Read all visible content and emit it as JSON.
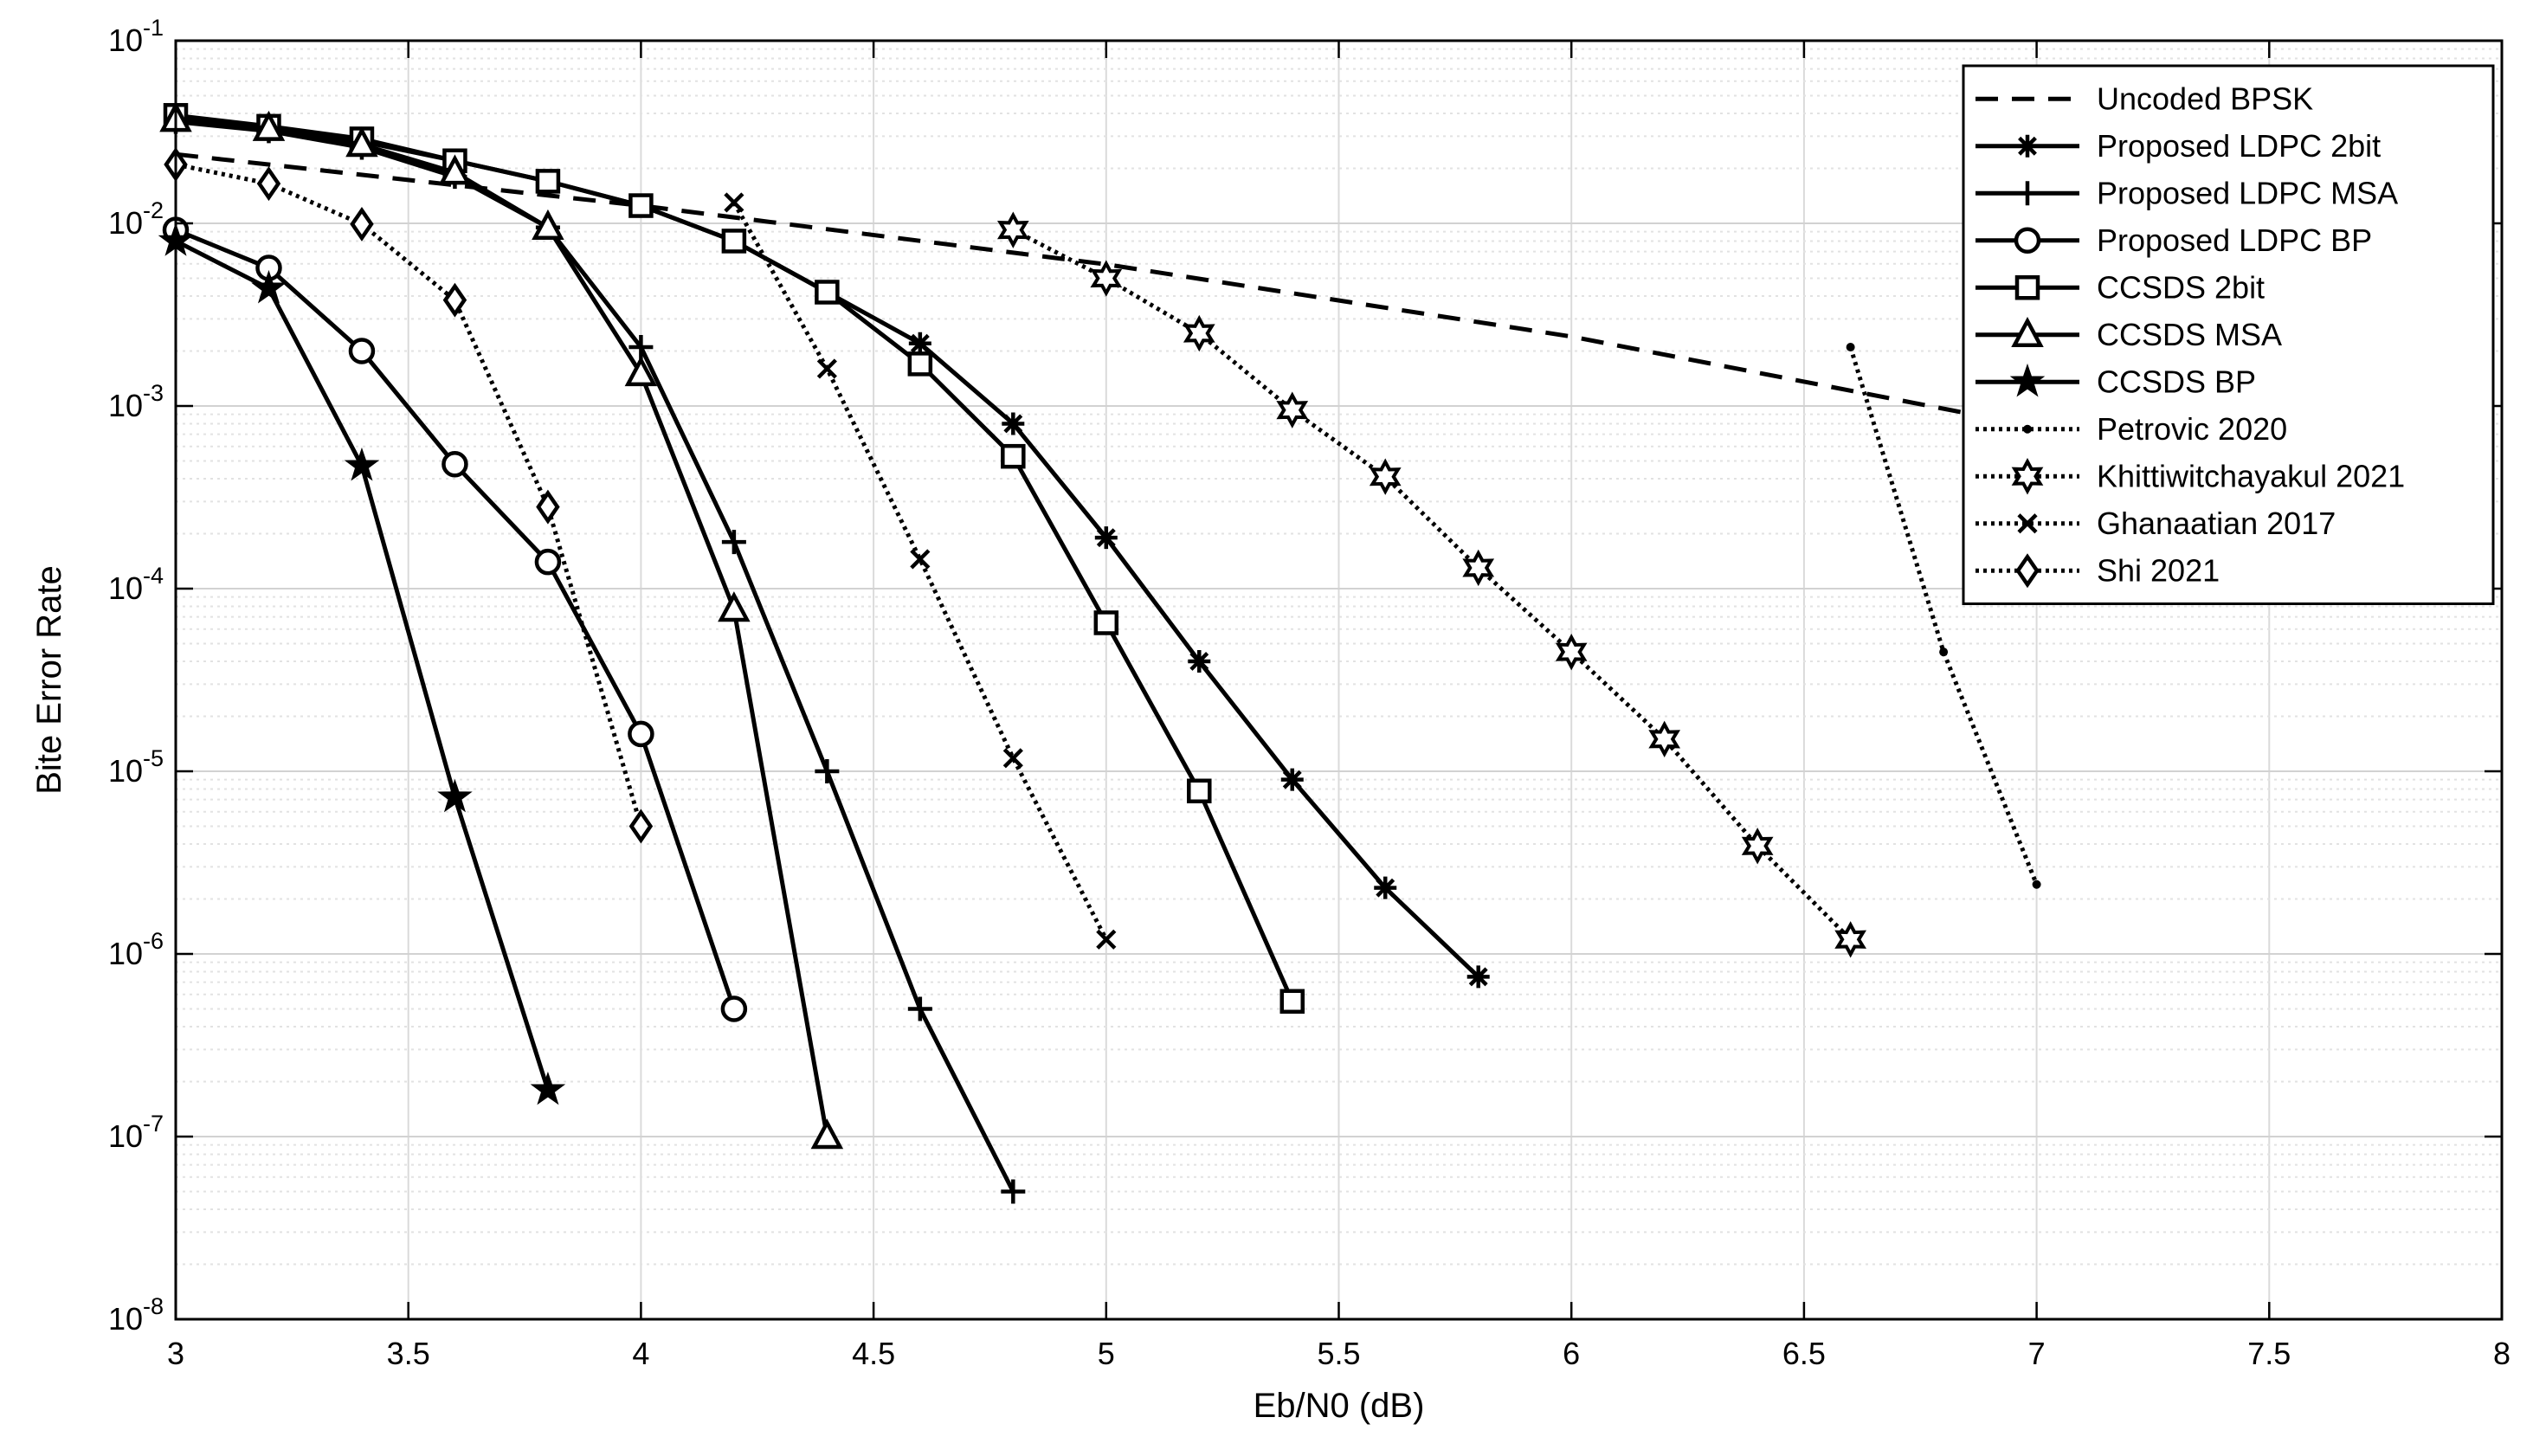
{
  "chart_data": {
    "type": "line",
    "title": "",
    "xlabel": "Eb/N0 (dB)",
    "ylabel": "Bite Error Rate",
    "xlim": [
      3,
      8
    ],
    "ylim": [
      1e-08,
      0.1
    ],
    "yscale": "log",
    "grid": true,
    "minor_grid": true,
    "legend_position": "top-right",
    "x_ticks": [
      "3",
      "3.5",
      "4",
      "4.5",
      "5",
      "5.5",
      "6",
      "6.5",
      "7",
      "7.5",
      "8"
    ],
    "y_ticks": [
      {
        "base": "10",
        "exp": "-8"
      },
      {
        "base": "10",
        "exp": "-7"
      },
      {
        "base": "10",
        "exp": "-6"
      },
      {
        "base": "10",
        "exp": "-5"
      },
      {
        "base": "10",
        "exp": "-4"
      },
      {
        "base": "10",
        "exp": "-3"
      },
      {
        "base": "10",
        "exp": "-2"
      },
      {
        "base": "10",
        "exp": "-1"
      }
    ],
    "series": [
      {
        "name": "Uncoded BPSK",
        "line": "dashed",
        "marker": "none",
        "x": [
          3,
          4,
          5,
          6,
          7,
          8
        ],
        "y": [
          0.0239,
          0.0125,
          0.00596,
          0.0024,
          0.00077,
          0.00019
        ]
      },
      {
        "name": "Proposed LDPC 2bit",
        "line": "solid",
        "marker": "asterisk",
        "x": [
          3,
          3.2,
          3.4,
          3.6,
          3.8,
          4,
          4.2,
          4.4,
          4.6,
          4.8,
          5,
          5.2,
          5.4,
          5.6,
          5.8
        ],
        "y": [
          0.038,
          0.034,
          0.028,
          0.022,
          0.017,
          0.0125,
          0.008,
          0.0042,
          0.0022,
          0.0008,
          0.00019,
          4e-05,
          9e-06,
          2.3e-06,
          7.5e-07
        ]
      },
      {
        "name": "Proposed LDPC MSA",
        "line": "solid",
        "marker": "plus",
        "x": [
          3,
          3.2,
          3.4,
          3.6,
          3.8,
          4,
          4.2,
          4.4,
          4.6,
          4.8
        ],
        "y": [
          0.036,
          0.032,
          0.026,
          0.018,
          0.0095,
          0.0021,
          0.00018,
          1e-05,
          5e-07,
          5e-08
        ]
      },
      {
        "name": "Proposed LDPC BP",
        "line": "solid",
        "marker": "circle",
        "x": [
          3,
          3.2,
          3.4,
          3.6,
          3.8,
          4,
          4.2
        ],
        "y": [
          0.0092,
          0.0057,
          0.002,
          0.00048,
          0.00014,
          1.6e-05,
          5e-07
        ]
      },
      {
        "name": "CCSDS 2bit",
        "line": "solid",
        "marker": "square",
        "x": [
          3,
          3.2,
          3.4,
          3.6,
          3.8,
          4,
          4.2,
          4.4,
          4.6,
          4.8,
          5,
          5.2,
          5.4
        ],
        "y": [
          0.039,
          0.034,
          0.029,
          0.022,
          0.017,
          0.0125,
          0.008,
          0.0042,
          0.0017,
          0.00053,
          6.5e-05,
          7.8e-06,
          5.5e-07
        ]
      },
      {
        "name": "CCSDS MSA",
        "line": "solid",
        "marker": "triangle",
        "x": [
          3,
          3.2,
          3.4,
          3.6,
          3.8,
          4,
          4.2,
          4.4
        ],
        "y": [
          0.037,
          0.033,
          0.027,
          0.019,
          0.0095,
          0.0015,
          7.7e-05,
          1e-07
        ]
      },
      {
        "name": "CCSDS BP",
        "line": "solid",
        "marker": "star",
        "x": [
          3,
          3.2,
          3.4,
          3.6,
          3.8
        ],
        "y": [
          0.008,
          0.0044,
          0.00047,
          7.2e-06,
          1.8e-07
        ]
      },
      {
        "name": "Petrovic 2020",
        "line": "dotted",
        "marker": "dot",
        "x": [
          6.6,
          6.8,
          7
        ],
        "y": [
          0.0021,
          4.5e-05,
          2.4e-06
        ]
      },
      {
        "name": "Khittiwitchayakul 2021",
        "line": "dotted",
        "marker": "hexagram",
        "x": [
          4.8,
          5,
          5.2,
          5.4,
          5.6,
          5.8,
          6,
          6.2,
          6.4,
          6.6
        ],
        "y": [
          0.0092,
          0.005,
          0.0025,
          0.00095,
          0.00041,
          0.00013,
          4.5e-05,
          1.5e-05,
          3.9e-06,
          1.2e-06
        ]
      },
      {
        "name": "Ghanaatian 2017",
        "line": "dotted",
        "marker": "x",
        "x": [
          4.2,
          4.4,
          4.6,
          4.8,
          5
        ],
        "y": [
          0.013,
          0.0016,
          0.000145,
          1.18e-05,
          1.2e-06
        ]
      },
      {
        "name": "Shi 2021",
        "line": "dotted",
        "marker": "diamond",
        "x": [
          3,
          3.2,
          3.4,
          3.6,
          3.8,
          4
        ],
        "y": [
          0.021,
          0.0165,
          0.0099,
          0.0038,
          0.00028,
          5e-06
        ]
      }
    ]
  }
}
